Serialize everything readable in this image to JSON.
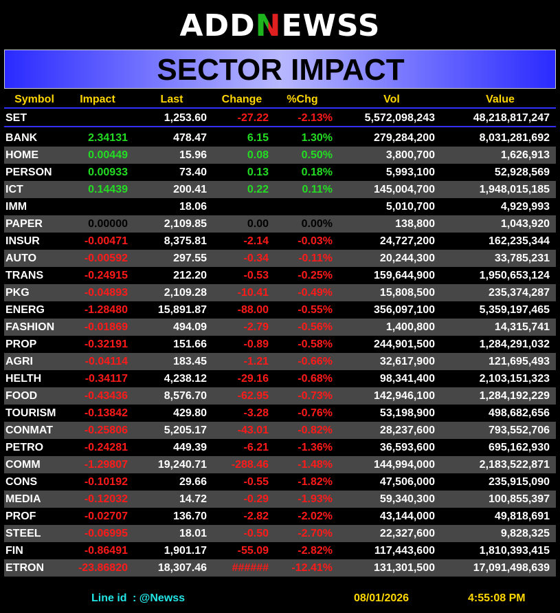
{
  "header": {
    "logo": [
      "ADD",
      "N",
      "EWSS"
    ],
    "title": "SECTOR IMPACT"
  },
  "table": {
    "columns": [
      "Symbol",
      "Impact",
      "Last",
      "Change",
      "%Chg",
      "Vol",
      "Value"
    ],
    "index_row": [
      "SET",
      null,
      "1,253.60",
      "-27.22",
      "-2.13%",
      "5,572,098,243",
      "48,218,817,247"
    ],
    "index_trend": "down",
    "rows": [
      [
        "BANK",
        "2.34131",
        "478.47",
        "6.15",
        "1.30%",
        "279,284,200",
        "8,031,281,692"
      ],
      [
        "HOME",
        "0.00449",
        "15.96",
        "0.08",
        "0.50%",
        "3,800,700",
        "1,626,913"
      ],
      [
        "PERSON",
        "0.00933",
        "73.40",
        "0.13",
        "0.18%",
        "5,993,100",
        "52,928,569"
      ],
      [
        "ICT",
        "0.14439",
        "200.41",
        "0.22",
        "0.11%",
        "145,004,700",
        "1,948,015,185"
      ],
      [
        "IMM",
        null,
        "18.06",
        null,
        null,
        "5,010,700",
        "4,929,993"
      ],
      [
        "PAPER",
        "0.00000",
        "2,109.85",
        "0.00",
        "0.00%",
        "138,800",
        "1,043,920"
      ],
      [
        "INSUR",
        "-0.00471",
        "8,375.81",
        "-2.14",
        "-0.03%",
        "24,727,200",
        "162,235,344"
      ],
      [
        "AUTO",
        "-0.00592",
        "297.55",
        "-0.34",
        "-0.11%",
        "20,244,300",
        "33,785,231"
      ],
      [
        "TRANS",
        "-0.24915",
        "212.20",
        "-0.53",
        "-0.25%",
        "159,644,900",
        "1,950,653,124"
      ],
      [
        "PKG",
        "-0.04893",
        "2,109.28",
        "-10.41",
        "-0.49%",
        "15,808,500",
        "235,374,287"
      ],
      [
        "ENERG",
        "-1.28480",
        "15,891.87",
        "-88.00",
        "-0.55%",
        "356,097,100",
        "5,359,197,465"
      ],
      [
        "FASHION",
        "-0.01869",
        "494.09",
        "-2.79",
        "-0.56%",
        "1,400,800",
        "14,315,741"
      ],
      [
        "PROP",
        "-0.32191",
        "151.66",
        "-0.89",
        "-0.58%",
        "244,901,500",
        "1,284,291,032"
      ],
      [
        "AGRI",
        "-0.04114",
        "183.45",
        "-1.21",
        "-0.66%",
        "32,617,900",
        "121,695,493"
      ],
      [
        "HELTH",
        "-0.34117",
        "4,238.12",
        "-29.16",
        "-0.68%",
        "98,341,400",
        "2,103,151,323"
      ],
      [
        "FOOD",
        "-0.43436",
        "8,576.70",
        "-62.95",
        "-0.73%",
        "142,946,100",
        "1,284,192,229"
      ],
      [
        "TOURISM",
        "-0.13842",
        "429.80",
        "-3.28",
        "-0.76%",
        "53,198,900",
        "498,682,656"
      ],
      [
        "CONMAT",
        "-0.25806",
        "5,205.17",
        "-43.01",
        "-0.82%",
        "28,237,600",
        "793,552,706"
      ],
      [
        "PETRO",
        "-0.24281",
        "449.39",
        "-6.21",
        "-1.36%",
        "36,593,600",
        "695,162,930"
      ],
      [
        "COMM",
        "-1.29807",
        "19,240.71",
        "-288.46",
        "-1.48%",
        "144,994,000",
        "2,183,522,871"
      ],
      [
        "CONS",
        "-0.10192",
        "29.66",
        "-0.55",
        "-1.82%",
        "47,506,000",
        "235,915,090"
      ],
      [
        "MEDIA",
        "-0.12032",
        "14.72",
        "-0.29",
        "-1.93%",
        "59,340,300",
        "100,855,397"
      ],
      [
        "PROF",
        "-0.02707",
        "136.70",
        "-2.82",
        "-2.02%",
        "43,144,000",
        "49,818,691"
      ],
      [
        "STEEL",
        "-0.06995",
        "18.01",
        "-0.50",
        "-2.70%",
        "22,327,600",
        "9,828,325"
      ],
      [
        "FIN",
        "-0.86491",
        "1,901.17",
        "-55.09",
        "-2.82%",
        "117,443,600",
        "1,810,393,415"
      ],
      [
        "ETRON",
        "-23.86820",
        "18,307.46",
        "######",
        "-12.41%",
        "131,301,500",
        "17,091,498,639"
      ]
    ],
    "trends": [
      "up",
      "up",
      "up",
      "up",
      "flat",
      "flat",
      "down",
      "down",
      "down",
      "down",
      "down",
      "down",
      "down",
      "down",
      "down",
      "down",
      "down",
      "down",
      "down",
      "down",
      "down",
      "down",
      "down",
      "down",
      "down",
      "down"
    ]
  },
  "footer": {
    "line_label": "Line id",
    "line_id": ": @Newss",
    "date": "08/01/2026",
    "time": "4:55:08 PM"
  }
}
